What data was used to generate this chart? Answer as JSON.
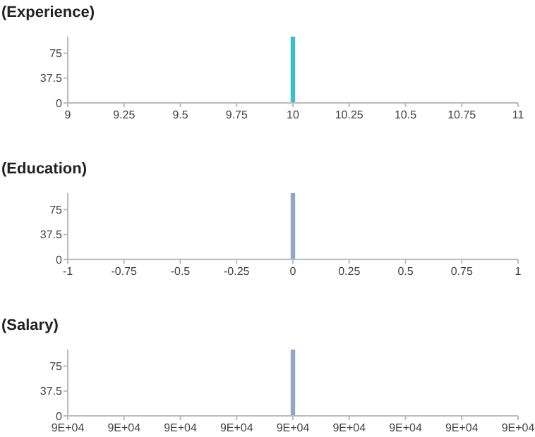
{
  "chart_data": [
    {
      "type": "histogram",
      "title": "(Experience)",
      "bins": [
        9.99,
        10.01
      ],
      "values": [
        100
      ],
      "color": "#3cbccc",
      "xlim": [
        9,
        11
      ],
      "xticks": [
        9,
        9.25,
        9.5,
        9.75,
        10,
        10.25,
        10.5,
        10.75,
        11
      ],
      "ylim": [
        0,
        100
      ],
      "yticks": [
        0,
        37.5,
        75
      ],
      "grid": false
    },
    {
      "type": "histogram",
      "title": "(Education)",
      "bins": [
        -0.01,
        0.01
      ],
      "values": [
        100
      ],
      "color": "#8fa6c4",
      "xlim": [
        -1,
        1
      ],
      "xticks": [
        -1,
        -0.75,
        -0.5,
        -0.25,
        0,
        0.25,
        0.5,
        0.75,
        1
      ],
      "ylim": [
        0,
        100
      ],
      "yticks": [
        0,
        37.5,
        75
      ],
      "grid": false
    },
    {
      "type": "histogram",
      "title": "(Salary)",
      "bins": [
        89999.99,
        90000.01
      ],
      "values": [
        100
      ],
      "color": "#8fa6c4",
      "xlim": [
        89999,
        90001
      ],
      "xticks": [
        {
          "value": 89999,
          "label": "9E+04"
        },
        {
          "value": 89999.25,
          "label": "9E+04"
        },
        {
          "value": 89999.5,
          "label": "9E+04"
        },
        {
          "value": 89999.75,
          "label": "9E+04"
        },
        {
          "value": 90000,
          "label": "9E+04"
        },
        {
          "value": 90000.25,
          "label": "9E+04"
        },
        {
          "value": 90000.5,
          "label": "9E+04"
        },
        {
          "value": 90000.75,
          "label": "9E+04"
        },
        {
          "value": 90001,
          "label": "9E+04"
        }
      ],
      "ylim": [
        0,
        100
      ],
      "yticks": [
        0,
        37.5,
        75
      ],
      "grid": false
    }
  ]
}
